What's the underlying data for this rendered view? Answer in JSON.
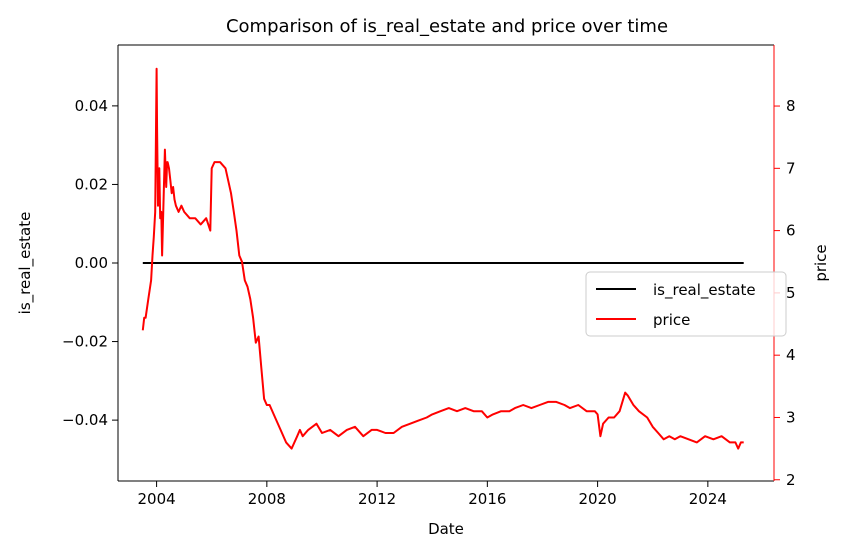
{
  "chart_data": {
    "type": "line",
    "title": "Comparison of is_real_estate and price over time",
    "xlabel": "Date",
    "ylabel_left": "is_real_estate",
    "ylabel_right": "price",
    "x_range": [
      2002.6,
      2026.4
    ],
    "ylim_left": [
      -0.0555,
      0.0555
    ],
    "ylim_right": [
      1.98,
      8.98
    ],
    "x_ticks": [
      2004,
      2008,
      2012,
      2016,
      2020,
      2024
    ],
    "x_tick_labels": [
      "2004",
      "2008",
      "2012",
      "2016",
      "2020",
      "2024"
    ],
    "y_left_ticks": [
      0.04,
      0.02,
      0.0,
      -0.02,
      -0.04
    ],
    "y_left_tick_labels": [
      "0.04",
      "0.02",
      "0.00",
      "−0.02",
      "−0.04"
    ],
    "y_right_ticks": [
      8,
      7,
      6,
      5,
      4,
      3,
      2
    ],
    "y_right_tick_labels": [
      "8",
      "7",
      "6",
      "5",
      "4",
      "3",
      "2"
    ],
    "grid": false,
    "legend": {
      "placement": "center-right",
      "entries": [
        "is_real_estate",
        "price"
      ]
    },
    "colors": {
      "is_real_estate": "#000000",
      "price": "#ff0000",
      "right_axis": "#ff0000"
    },
    "series": [
      {
        "name": "is_real_estate",
        "axis": "left",
        "x": [
          2003.5,
          2025.3
        ],
        "y": [
          0.0,
          0.0
        ]
      },
      {
        "name": "price",
        "axis": "right",
        "x": [
          2003.5,
          2003.55,
          2003.6,
          2003.7,
          2003.8,
          2003.85,
          2003.9,
          2003.95,
          2004.0,
          2004.02,
          2004.05,
          2004.1,
          2004.13,
          2004.17,
          2004.2,
          2004.3,
          2004.35,
          2004.38,
          2004.4,
          2004.45,
          2004.5,
          2004.55,
          2004.6,
          2004.65,
          2004.7,
          2004.8,
          2004.9,
          2005.0,
          2005.2,
          2005.4,
          2005.6,
          2005.8,
          2005.95,
          2006.0,
          2006.1,
          2006.3,
          2006.5,
          2006.7,
          2006.8,
          2006.9,
          2007.0,
          2007.1,
          2007.2,
          2007.3,
          2007.4,
          2007.5,
          2007.6,
          2007.7,
          2007.8,
          2007.9,
          2008.0,
          2008.1,
          2008.3,
          2008.5,
          2008.7,
          2008.9,
          2009.1,
          2009.2,
          2009.3,
          2009.5,
          2009.8,
          2010.0,
          2010.3,
          2010.6,
          2010.9,
          2011.2,
          2011.5,
          2011.8,
          2012.0,
          2012.3,
          2012.6,
          2012.9,
          2013.2,
          2013.5,
          2013.8,
          2014.0,
          2014.3,
          2014.6,
          2014.9,
          2015.2,
          2015.5,
          2015.8,
          2016.0,
          2016.2,
          2016.5,
          2016.8,
          2017.0,
          2017.3,
          2017.6,
          2017.9,
          2018.2,
          2018.5,
          2018.8,
          2019.0,
          2019.3,
          2019.6,
          2019.9,
          2020.0,
          2020.1,
          2020.2,
          2020.4,
          2020.6,
          2020.8,
          2021.0,
          2021.1,
          2021.3,
          2021.5,
          2021.8,
          2022.0,
          2022.2,
          2022.4,
          2022.6,
          2022.8,
          2023.0,
          2023.3,
          2023.6,
          2023.9,
          2024.2,
          2024.5,
          2024.8,
          2025.0,
          2025.1,
          2025.2,
          2025.3
        ],
        "y": [
          4.4,
          4.6,
          4.6,
          4.9,
          5.2,
          5.6,
          5.9,
          6.3,
          8.6,
          7.6,
          6.4,
          7.0,
          6.2,
          6.3,
          5.6,
          7.3,
          6.7,
          7.1,
          7.1,
          7.0,
          6.8,
          6.6,
          6.7,
          6.5,
          6.4,
          6.3,
          6.4,
          6.3,
          6.2,
          6.2,
          6.1,
          6.2,
          6.0,
          7.0,
          7.1,
          7.1,
          7.0,
          6.6,
          6.3,
          6.0,
          5.6,
          5.5,
          5.2,
          5.1,
          4.9,
          4.6,
          4.2,
          4.3,
          3.8,
          3.3,
          3.2,
          3.2,
          3.0,
          2.8,
          2.6,
          2.5,
          2.7,
          2.8,
          2.7,
          2.8,
          2.9,
          2.75,
          2.8,
          2.7,
          2.8,
          2.85,
          2.7,
          2.8,
          2.8,
          2.75,
          2.75,
          2.85,
          2.9,
          2.95,
          3.0,
          3.05,
          3.1,
          3.15,
          3.1,
          3.15,
          3.1,
          3.1,
          3.0,
          3.05,
          3.1,
          3.1,
          3.15,
          3.2,
          3.15,
          3.2,
          3.25,
          3.25,
          3.2,
          3.15,
          3.2,
          3.1,
          3.1,
          3.05,
          2.7,
          2.9,
          3.0,
          3.0,
          3.1,
          3.4,
          3.35,
          3.2,
          3.1,
          3.0,
          2.85,
          2.75,
          2.65,
          2.7,
          2.65,
          2.7,
          2.65,
          2.6,
          2.7,
          2.65,
          2.7,
          2.6,
          2.6,
          2.5,
          2.6,
          2.6
        ]
      }
    ]
  }
}
